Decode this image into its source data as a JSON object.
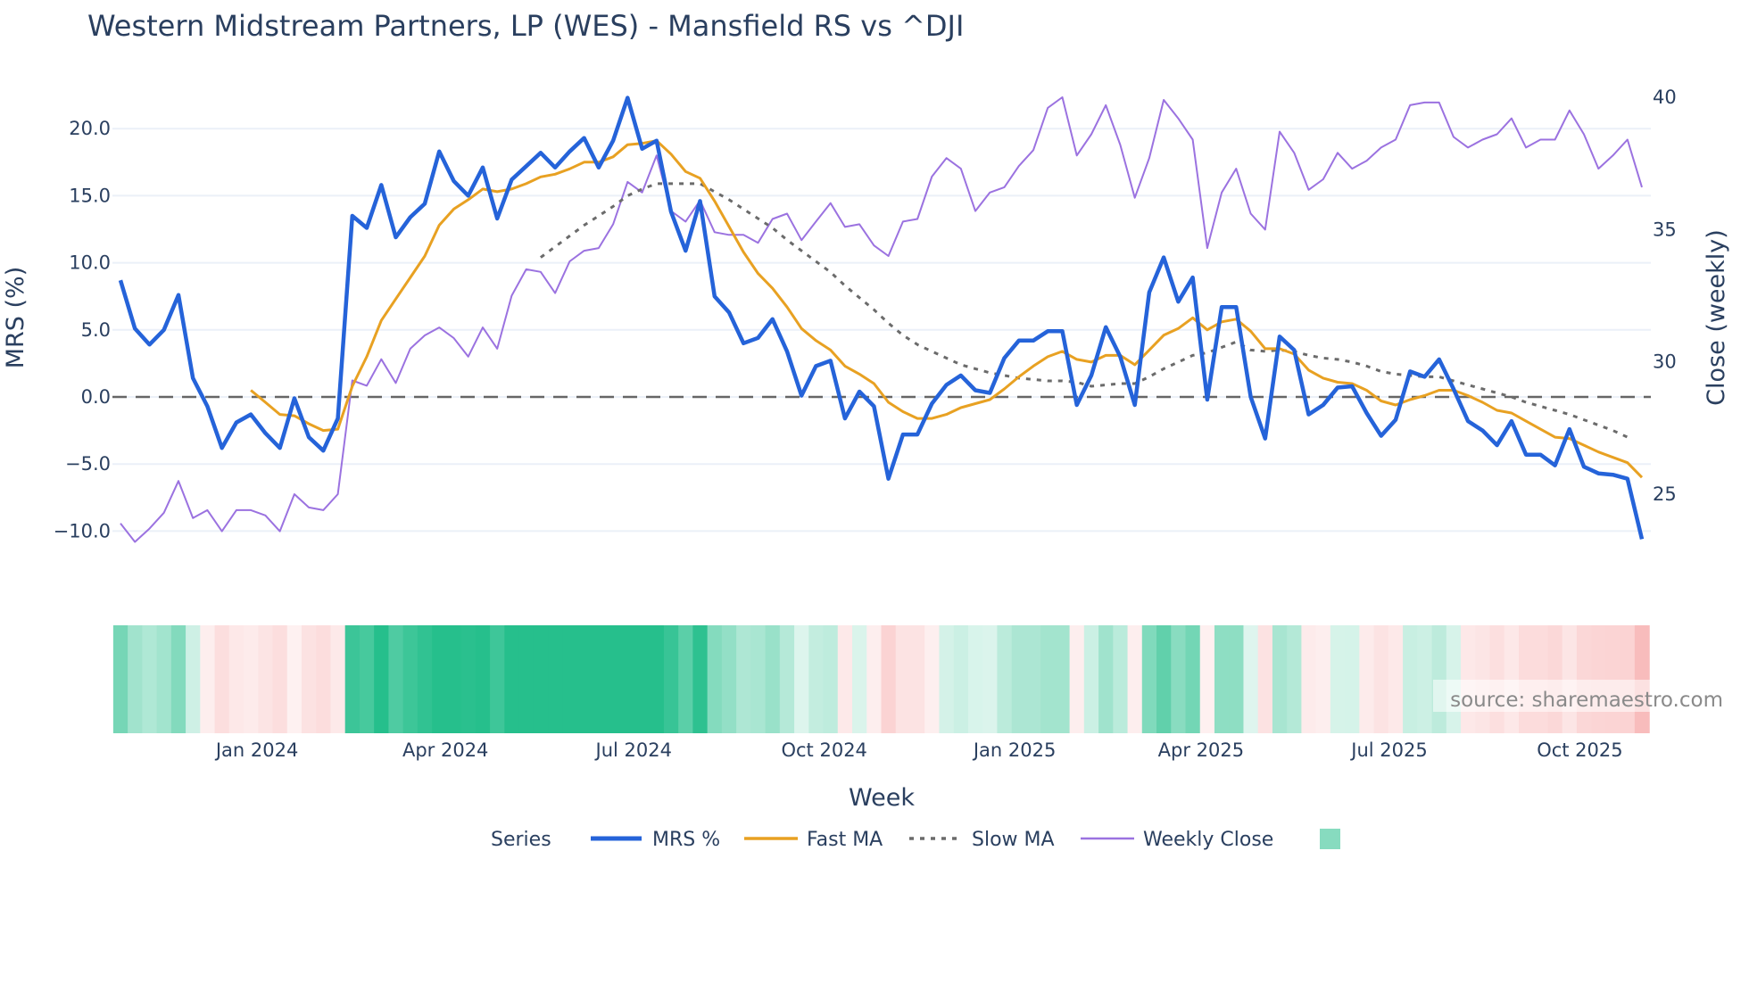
{
  "chart_data": {
    "type": "line",
    "title": "Western Midstream Partners, LP (WES) - Mansfield RS vs ^DJI",
    "xlabel": "Week",
    "ylabel": "MRS (%)",
    "y2label": "Close (weekly)",
    "x_start": "2023-10-27",
    "x_step_days": 7,
    "ylim": [
      -11.5,
      24
    ],
    "y2lim": [
      22.5,
      41.2
    ],
    "yticks": [
      "20.0",
      "15.0",
      "10.0",
      "5.0",
      "0.0",
      "−5.0",
      "−10.0"
    ],
    "ytick_values": [
      20,
      15,
      10,
      5,
      0,
      -5,
      -10
    ],
    "y2ticks": [
      "40",
      "35",
      "30",
      "25"
    ],
    "y2tick_values": [
      40,
      35,
      30,
      25
    ],
    "xticks": [
      {
        "label": "Jan 2024",
        "date": "2024-01-01"
      },
      {
        "label": "Apr 2024",
        "date": "2024-04-01"
      },
      {
        "label": "Jul 2024",
        "date": "2024-07-01"
      },
      {
        "label": "Oct 2024",
        "date": "2024-10-01"
      },
      {
        "label": "Jan 2025",
        "date": "2025-01-01"
      },
      {
        "label": "Apr 2025",
        "date": "2025-04-01"
      },
      {
        "label": "Jul 2025",
        "date": "2025-07-01"
      },
      {
        "label": "Oct 2025",
        "date": "2025-10-01"
      }
    ],
    "grid": true,
    "zero_line": 0,
    "legend": {
      "title": "Series",
      "placement": "bottom-center"
    },
    "series": [
      {
        "name": "MRS %",
        "color": "#2563d9",
        "axis": "left",
        "style": "solid",
        "values": [
          8.7,
          5.1,
          3.9,
          5.0,
          7.6,
          1.4,
          -0.7,
          -3.8,
          -1.9,
          -1.3,
          -2.7,
          -3.8,
          -0.1,
          -3.0,
          -4.0,
          -1.6,
          13.5,
          12.6,
          15.8,
          11.9,
          13.4,
          14.4,
          18.3,
          16.1,
          15.0,
          17.1,
          13.3,
          16.2,
          17.2,
          18.2,
          17.1,
          18.3,
          19.3,
          17.1,
          19.1,
          22.3,
          18.5,
          19.1,
          13.8,
          10.9,
          14.6,
          7.5,
          6.3,
          4.0,
          4.4,
          5.8,
          3.4,
          0.1,
          2.3,
          2.7,
          -1.6,
          0.4,
          -0.7,
          -6.1,
          -2.8,
          -2.8,
          -0.5,
          0.9,
          1.6,
          0.5,
          0.3,
          2.9,
          4.2,
          4.2,
          4.9,
          4.9,
          -0.6,
          1.6,
          5.2,
          3.0,
          -0.6,
          7.8,
          10.4,
          7.1,
          8.9,
          -0.2,
          6.7,
          6.7,
          0.0,
          -3.1,
          4.5,
          3.5,
          -1.3,
          -0.6,
          0.7,
          0.8,
          -1.2,
          -2.9,
          -1.7,
          1.9,
          1.5,
          2.8,
          0.6,
          -1.8,
          -2.5,
          -3.6,
          -1.8,
          -4.3,
          -4.3,
          -5.1,
          -2.4,
          -5.2,
          -5.7,
          -5.8,
          -6.1,
          -10.6
        ]
      },
      {
        "name": "Fast MA",
        "color": "#e8a122",
        "axis": "left",
        "style": "solid",
        "values": [
          null,
          null,
          null,
          null,
          null,
          null,
          null,
          null,
          null,
          0.5,
          -0.4,
          -1.3,
          -1.4,
          -2.0,
          -2.5,
          -2.4,
          0.8,
          3.0,
          5.7,
          7.3,
          8.9,
          10.5,
          12.8,
          14.0,
          14.7,
          15.5,
          15.3,
          15.5,
          15.9,
          16.4,
          16.6,
          17.0,
          17.5,
          17.5,
          17.9,
          18.8,
          18.9,
          19.1,
          18.1,
          16.8,
          16.3,
          14.6,
          12.7,
          10.8,
          9.2,
          8.1,
          6.7,
          5.1,
          4.2,
          3.5,
          2.3,
          1.7,
          1.0,
          -0.4,
          -1.1,
          -1.6,
          -1.6,
          -1.3,
          -0.8,
          -0.5,
          -0.2,
          0.6,
          1.5,
          2.3,
          3.0,
          3.4,
          2.8,
          2.6,
          3.1,
          3.1,
          2.4,
          3.5,
          4.6,
          5.1,
          5.9,
          5.0,
          5.6,
          5.8,
          4.9,
          3.6,
          3.6,
          3.2,
          2.0,
          1.4,
          1.1,
          1.0,
          0.5,
          -0.3,
          -0.6,
          -0.2,
          0.1,
          0.5,
          0.5,
          0.1,
          -0.4,
          -1.0,
          -1.2,
          -1.8,
          -2.4,
          -3.0,
          -3.1,
          -3.6,
          -4.1,
          -4.5,
          -4.9,
          -6.0
        ]
      },
      {
        "name": "Slow MA",
        "color": "#6b6b6b",
        "axis": "left",
        "style": "dotted",
        "values": [
          null,
          null,
          null,
          null,
          null,
          null,
          null,
          null,
          null,
          null,
          null,
          null,
          null,
          null,
          null,
          null,
          null,
          null,
          null,
          null,
          null,
          null,
          null,
          null,
          null,
          null,
          null,
          null,
          null,
          10.4,
          11.2,
          12.0,
          12.8,
          13.5,
          14.2,
          15.0,
          15.5,
          15.9,
          15.9,
          15.9,
          15.9,
          15.3,
          14.7,
          14.0,
          13.3,
          12.6,
          11.7,
          10.9,
          10.1,
          9.3,
          8.3,
          7.4,
          6.5,
          5.5,
          4.6,
          3.9,
          3.4,
          2.9,
          2.4,
          2.1,
          1.8,
          1.6,
          1.4,
          1.3,
          1.2,
          1.2,
          1.1,
          0.8,
          0.9,
          1.0,
          1.0,
          1.5,
          2.1,
          2.6,
          3.1,
          3.3,
          3.7,
          4.1,
          3.5,
          3.4,
          3.5,
          3.4,
          3.1,
          2.9,
          2.8,
          2.6,
          2.3,
          1.9,
          1.7,
          1.6,
          1.5,
          1.5,
          1.2,
          0.9,
          0.6,
          0.3,
          0.0,
          -0.4,
          -0.7,
          -1.0,
          -1.3,
          -1.7,
          -2.1,
          -2.5,
          -3.0
        ]
      },
      {
        "name": "Weekly Close",
        "color": "#9b72e0",
        "axis": "right",
        "style": "solid",
        "values": [
          23.9,
          23.2,
          23.7,
          24.3,
          25.5,
          24.1,
          24.4,
          23.6,
          24.4,
          24.4,
          24.2,
          23.6,
          25.0,
          24.5,
          24.4,
          25.0,
          29.3,
          29.1,
          30.1,
          29.2,
          30.5,
          31.0,
          31.3,
          30.9,
          30.2,
          31.3,
          30.5,
          32.5,
          33.5,
          33.4,
          32.6,
          33.8,
          34.2,
          34.3,
          35.2,
          36.8,
          36.4,
          37.8,
          35.7,
          35.3,
          36.1,
          34.9,
          34.8,
          34.8,
          34.5,
          35.4,
          35.6,
          34.6,
          35.3,
          36.0,
          35.1,
          35.2,
          34.4,
          34.0,
          35.3,
          35.4,
          37.0,
          37.7,
          37.3,
          35.7,
          36.4,
          36.6,
          37.4,
          38.0,
          39.6,
          40.0,
          37.8,
          38.6,
          39.7,
          38.2,
          36.2,
          37.7,
          39.9,
          39.2,
          38.4,
          34.3,
          36.4,
          37.3,
          35.6,
          35.0,
          38.7,
          37.9,
          36.5,
          36.9,
          37.9,
          37.3,
          37.6,
          38.1,
          38.4,
          39.7,
          39.8,
          39.8,
          38.5,
          38.1,
          38.4,
          38.6,
          39.2,
          38.1,
          38.4,
          38.4,
          39.5,
          38.6,
          37.3,
          37.8,
          38.4,
          36.6
        ]
      }
    ],
    "heatmap": {
      "source_series": "MRS %",
      "positive_color": "#26bf8c",
      "negative_color": "#f59a9a"
    }
  },
  "source_note": "source: sharemaestro.com"
}
